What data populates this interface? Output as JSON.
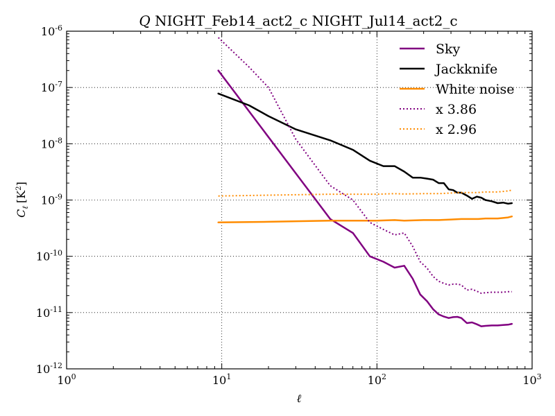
{
  "chart_data": {
    "type": "line",
    "title_var": "Q",
    "title_rest": " NIGHT_Feb14_act2_c NIGHT_Jul14_act2_c",
    "xlabel": "ℓ",
    "ylabel_main": "C",
    "ylabel_sub": "ℓ",
    "ylabel_unit": "[K",
    "ylabel_unit_exp": "2",
    "ylabel_unit_close": "]",
    "xscale": "log",
    "yscale": "log",
    "xlim": [
      1,
      1000
    ],
    "ylim": [
      1e-12,
      1e-06
    ],
    "grid": true,
    "legend_position": "top-right",
    "x_ticks": [
      {
        "value": 1,
        "base": "10",
        "exp": "0"
      },
      {
        "value": 10,
        "base": "10",
        "exp": "1"
      },
      {
        "value": 100,
        "base": "10",
        "exp": "2"
      },
      {
        "value": 1000,
        "base": "10",
        "exp": "3"
      }
    ],
    "y_ticks": [
      {
        "value": 1e-12,
        "base": "10",
        "exp": "-12"
      },
      {
        "value": 1e-11,
        "base": "10",
        "exp": "-11"
      },
      {
        "value": 1e-10,
        "base": "10",
        "exp": "-10"
      },
      {
        "value": 1e-09,
        "base": "10",
        "exp": "-9"
      },
      {
        "value": 1e-08,
        "base": "10",
        "exp": "-8"
      },
      {
        "value": 1e-07,
        "base": "10",
        "exp": "-7"
      },
      {
        "value": 1e-06,
        "base": "10",
        "exp": "-6"
      }
    ],
    "series": [
      {
        "name": "Sky",
        "color": "#800080",
        "style": "solid",
        "x": [
          9.5,
          50,
          70,
          90,
          110,
          130,
          150,
          170,
          190,
          210,
          230,
          250,
          270,
          290,
          310,
          330,
          350,
          380,
          410,
          440,
          470,
          500,
          550,
          600,
          650,
          700,
          740
        ],
        "y": [
          2e-07,
          4.6e-10,
          2.6e-10,
          1e-10,
          8e-11,
          6.3e-11,
          6.8e-11,
          4e-11,
          2.1e-11,
          1.6e-11,
          1.15e-11,
          9.3e-12,
          8.5e-12,
          8e-12,
          8.3e-12,
          8.4e-12,
          8e-12,
          6.5e-12,
          6.7e-12,
          6.2e-12,
          5.7e-12,
          5.8e-12,
          5.9e-12,
          5.9e-12,
          6e-12,
          6.1e-12,
          6.3e-12
        ]
      },
      {
        "name": "Jackknife",
        "color": "#000000",
        "style": "solid",
        "x": [
          9.5,
          15,
          20,
          30,
          50,
          70,
          90,
          110,
          130,
          150,
          170,
          190,
          210,
          230,
          250,
          270,
          290,
          310,
          330,
          350,
          380,
          410,
          440,
          470,
          500,
          550,
          600,
          650,
          700,
          740
        ],
        "y": [
          7.8e-08,
          4.8e-08,
          3.1e-08,
          1.8e-08,
          1.15e-08,
          7.8e-09,
          5e-09,
          4e-09,
          4e-09,
          3.2e-09,
          2.5e-09,
          2.5e-09,
          2.4e-09,
          2.3e-09,
          2e-09,
          2e-09,
          1.55e-09,
          1.5e-09,
          1.35e-09,
          1.35e-09,
          1.2e-09,
          1.05e-09,
          1.15e-09,
          1.1e-09,
          1e-09,
          9.5e-10,
          8.8e-10,
          9e-10,
          8.6e-10,
          8.8e-10
        ]
      },
      {
        "name": "White noise",
        "color": "#ff8c00",
        "style": "solid",
        "x": [
          9.5,
          20,
          30,
          50,
          70,
          100,
          130,
          150,
          200,
          250,
          300,
          350,
          400,
          450,
          500,
          550,
          600,
          650,
          700,
          740
        ],
        "y": [
          4e-10,
          4.1e-10,
          4.2e-10,
          4.3e-10,
          4.3e-10,
          4.3e-10,
          4.4e-10,
          4.3e-10,
          4.4e-10,
          4.4e-10,
          4.5e-10,
          4.6e-10,
          4.6e-10,
          4.6e-10,
          4.7e-10,
          4.7e-10,
          4.7e-10,
          4.8e-10,
          4.9e-10,
          5.1e-10
        ]
      },
      {
        "name": "x 3.86",
        "color": "#800080",
        "style": "dotted",
        "x": [
          9.5,
          15,
          20,
          30,
          50,
          70,
          90,
          110,
          130,
          150,
          170,
          190,
          210,
          230,
          250,
          270,
          290,
          310,
          330,
          350,
          380,
          410,
          440,
          470,
          500,
          550,
          600,
          650,
          700,
          740
        ],
        "y": [
          7.7e-07,
          2.3e-07,
          1e-07,
          1.2e-08,
          1.8e-09,
          1e-09,
          4e-10,
          3e-10,
          2.4e-10,
          2.6e-10,
          1.5e-10,
          8e-11,
          6.2e-11,
          4.4e-11,
          3.6e-11,
          3.3e-11,
          3.1e-11,
          3.2e-11,
          3.2e-11,
          3.1e-11,
          2.5e-11,
          2.6e-11,
          2.4e-11,
          2.2e-11,
          2.25e-11,
          2.3e-11,
          2.3e-11,
          2.3e-11,
          2.35e-11,
          2.35e-11
        ]
      },
      {
        "name": "x 2.96",
        "color": "#ff8c00",
        "style": "dotted",
        "x": [
          9.5,
          20,
          30,
          50,
          70,
          100,
          130,
          150,
          200,
          250,
          300,
          350,
          400,
          450,
          500,
          550,
          600,
          650,
          700,
          740
        ],
        "y": [
          1.18e-09,
          1.22e-09,
          1.24e-09,
          1.27e-09,
          1.27e-09,
          1.27e-09,
          1.3e-09,
          1.28e-09,
          1.3e-09,
          1.3e-09,
          1.33e-09,
          1.36e-09,
          1.36e-09,
          1.36e-09,
          1.39e-09,
          1.39e-09,
          1.39e-09,
          1.42e-09,
          1.45e-09,
          1.5e-09
        ]
      }
    ]
  }
}
